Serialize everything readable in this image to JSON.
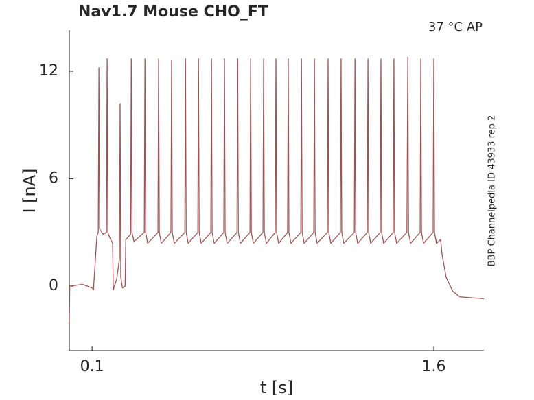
{
  "chart_data": {
    "type": "line",
    "title": "Nav1.7  Mouse  CHO_FT",
    "annotation": "37 °C  AP",
    "side_note": "BBP Channelpedia ID 43933 rep 2",
    "xlabel": "t [s]",
    "ylabel": "I [nA]",
    "xlim": [
      0,
      1.82
    ],
    "ylim": [
      -3.6,
      14.3
    ],
    "xticks": [
      0.1,
      1.6
    ],
    "yticks": [
      0,
      6,
      12
    ],
    "grid": false,
    "series": [
      {
        "name": "AP",
        "color": "#9a5656",
        "x": [
          0.0,
          0.002,
          0.058,
          0.1,
          0.106,
          0.121,
          0.127,
          0.13,
          0.133,
          0.148,
          0.163,
          0.166,
          0.169,
          0.178,
          0.19,
          0.193,
          0.208,
          0.22,
          0.223,
          0.226,
          0.233,
          0.245,
          0.248,
          0.269,
          0.272,
          0.275,
          0.284,
          0.329,
          0.332,
          0.335,
          0.344,
          0.389,
          0.392,
          0.395,
          0.404,
          0.446,
          0.449,
          0.452,
          0.461,
          0.507,
          0.51,
          0.513,
          0.522,
          0.564,
          0.567,
          0.57,
          0.579,
          0.621,
          0.624,
          0.627,
          0.636,
          0.678,
          0.681,
          0.684,
          0.693,
          0.736,
          0.739,
          0.742,
          0.751,
          0.793,
          0.796,
          0.799,
          0.808,
          0.85,
          0.853,
          0.856,
          0.865,
          0.904,
          0.907,
          0.91,
          0.919,
          0.958,
          0.961,
          0.964,
          0.973,
          1.016,
          1.019,
          1.022,
          1.031,
          1.073,
          1.076,
          1.079,
          1.088,
          1.133,
          1.136,
          1.139,
          1.148,
          1.19,
          1.193,
          1.196,
          1.205,
          1.251,
          1.254,
          1.257,
          1.266,
          1.308,
          1.311,
          1.314,
          1.323,
          1.365,
          1.368,
          1.371,
          1.38,
          1.422,
          1.425,
          1.428,
          1.437,
          1.482,
          1.486,
          1.489,
          1.498,
          1.54,
          1.543,
          1.546,
          1.555,
          1.597,
          1.6,
          1.603,
          1.612,
          1.63,
          1.636,
          1.654,
          1.684,
          1.715,
          1.82
        ],
        "values": [
          -2.0,
          0.0,
          0.1,
          -0.1,
          -0.2,
          2.8,
          3.0,
          12.2,
          3.2,
          2.9,
          3.0,
          12.7,
          3.0,
          2.7,
          2.4,
          -0.2,
          0.4,
          1.5,
          10.2,
          0.5,
          -0.1,
          0.0,
          2.6,
          2.9,
          12.7,
          3.0,
          2.5,
          3.0,
          12.7,
          3.0,
          2.4,
          3.0,
          12.7,
          3.0,
          2.4,
          3.0,
          12.6,
          3.0,
          2.4,
          3.0,
          12.7,
          3.0,
          2.4,
          3.0,
          12.7,
          3.0,
          2.4,
          3.0,
          12.7,
          3.0,
          2.4,
          3.0,
          12.7,
          3.0,
          2.4,
          3.0,
          12.7,
          3.0,
          2.4,
          3.0,
          12.7,
          3.0,
          2.4,
          3.0,
          12.7,
          3.0,
          2.4,
          3.0,
          12.7,
          3.0,
          2.4,
          3.0,
          12.7,
          3.0,
          2.4,
          3.0,
          12.7,
          3.0,
          2.4,
          3.0,
          12.7,
          3.0,
          2.4,
          3.0,
          12.7,
          3.0,
          2.4,
          3.0,
          12.7,
          3.0,
          2.4,
          3.0,
          12.7,
          3.0,
          2.4,
          3.0,
          12.7,
          3.0,
          2.4,
          3.0,
          12.7,
          3.0,
          2.4,
          3.0,
          12.7,
          3.0,
          2.4,
          3.0,
          12.8,
          3.0,
          2.4,
          3.0,
          12.7,
          3.0,
          2.4,
          3.0,
          12.7,
          3.0,
          2.4,
          2.6,
          1.8,
          0.5,
          -0.3,
          -0.6,
          -0.7
        ]
      }
    ]
  }
}
